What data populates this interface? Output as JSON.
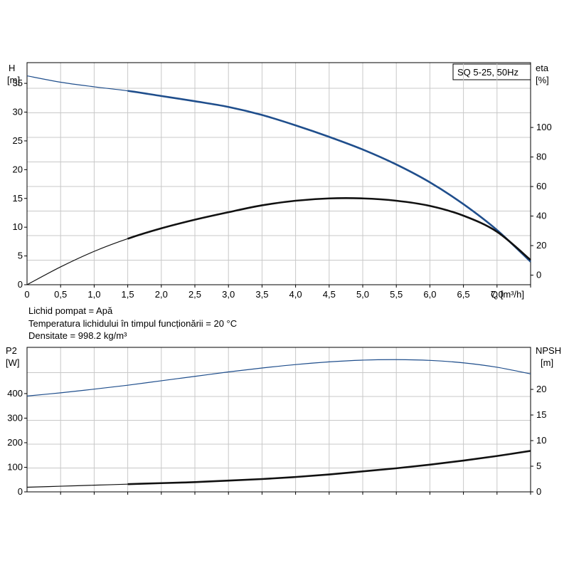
{
  "chart_data": [
    {
      "type": "line",
      "title": "",
      "model_label": "SQ 5-25, 50Hz",
      "left_axis": {
        "name": "H",
        "unit": "[m]",
        "ticks": [
          "0",
          "5",
          "10",
          "15",
          "20",
          "25",
          "30",
          "35"
        ],
        "range": [
          0,
          38.6
        ]
      },
      "right_axis": {
        "name": "eta",
        "unit": "[%]",
        "ticks": [
          "0",
          "20",
          "40",
          "60",
          "80",
          "100"
        ],
        "range": [
          -6.5,
          143.9
        ]
      },
      "x_axis": {
        "name": "Q [m³/h]",
        "ticks": [
          "0",
          "0,5",
          "1,0",
          "1,5",
          "2,0",
          "2,5",
          "3,0",
          "3,5",
          "4,0",
          "4,5",
          "5,0",
          "5,5",
          "6,0",
          "6,5",
          "7,0"
        ],
        "range": [
          0,
          7.5
        ]
      },
      "grid": true,
      "series": [
        {
          "axis": "left",
          "color": "#1f4e8c",
          "x": [
            0,
            0.5,
            1.0,
            1.5,
            2.0,
            2.5,
            3.0,
            3.5,
            4.0,
            4.5,
            5.0,
            5.5,
            6.0,
            6.5,
            7.0,
            7.5
          ],
          "values": [
            36.3,
            35.2,
            34.4,
            33.7,
            32.8,
            31.9,
            30.9,
            29.5,
            27.7,
            25.7,
            23.5,
            20.9,
            17.8,
            14.0,
            9.5,
            4.0
          ]
        },
        {
          "axis": "left",
          "color": "#111111",
          "x": [
            0,
            0.5,
            1.0,
            1.5,
            2.0,
            2.5,
            3.0,
            3.5,
            4.0,
            4.5,
            5.0,
            5.5,
            6.0,
            6.5,
            7.0,
            7.5
          ],
          "values": [
            0,
            3.1,
            5.8,
            8.0,
            9.8,
            11.3,
            12.6,
            13.8,
            14.6,
            15.0,
            15.0,
            14.6,
            13.7,
            12.0,
            9.2,
            4.3
          ]
        }
      ],
      "notes": [
        "Lichid pompat = Apă",
        "Temperatura lichidului în timpul funcționării = 20 °C",
        "Densitate = 998.2 kg/m³"
      ]
    },
    {
      "type": "line",
      "title": "",
      "left_axis": {
        "name": "P2",
        "unit": "[W]",
        "ticks": [
          "0",
          "100",
          "200",
          "300",
          "400"
        ],
        "range": [
          0,
          588
        ]
      },
      "right_axis": {
        "name": "NPSH",
        "unit": "[m]",
        "ticks": [
          "0",
          "5",
          "10",
          "15",
          "20"
        ],
        "range": [
          0,
          28.2
        ]
      },
      "x_axis": {
        "range": [
          0,
          7.5
        ]
      },
      "grid": true,
      "series": [
        {
          "axis": "left",
          "color": "#1f4e8c",
          "x": [
            0,
            0.5,
            1.0,
            1.5,
            2.0,
            2.5,
            3.0,
            3.5,
            4.0,
            4.5,
            5.0,
            5.5,
            6.0,
            6.5,
            7.0,
            7.5
          ],
          "values": [
            390,
            403,
            418,
            434,
            452,
            470,
            488,
            504,
            518,
            529,
            536,
            538,
            535,
            525,
            507,
            480
          ]
        },
        {
          "axis": "right",
          "color": "#111111",
          "x": [
            0,
            0.5,
            1.0,
            1.5,
            2.0,
            2.5,
            3.0,
            3.5,
            4.0,
            4.5,
            5.0,
            5.5,
            6.0,
            6.5,
            7.0,
            7.5
          ],
          "values": [
            0.9,
            1.1,
            1.3,
            1.5,
            1.7,
            1.9,
            2.2,
            2.5,
            2.9,
            3.4,
            4.0,
            4.6,
            5.3,
            6.1,
            7.0,
            8.0
          ]
        }
      ]
    }
  ]
}
